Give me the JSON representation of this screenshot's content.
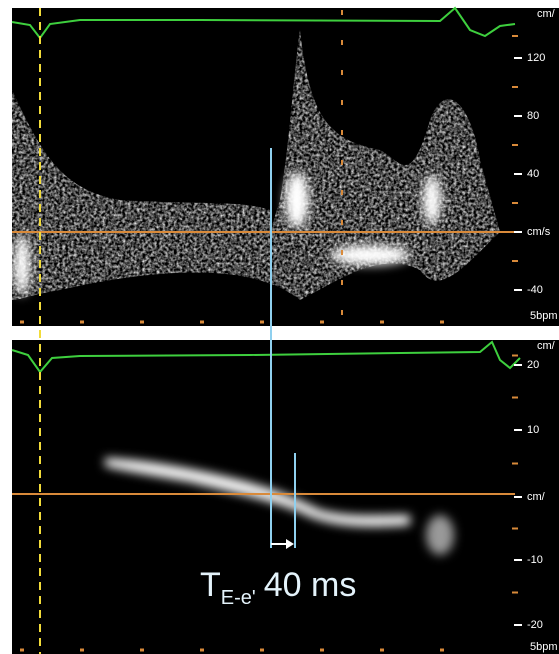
{
  "top_panel": {
    "scale_labels": [
      "cm/",
      "120",
      "80",
      "40",
      "cm/s",
      "-40",
      "5bpm"
    ]
  },
  "bottom_panel": {
    "scale_labels": [
      "cm/",
      "20",
      "10",
      "cm/",
      "-10",
      "-20",
      "5bpm"
    ]
  },
  "annotation": {
    "symbol": "T",
    "subscript": "E-e'",
    "value": "40 ms"
  }
}
